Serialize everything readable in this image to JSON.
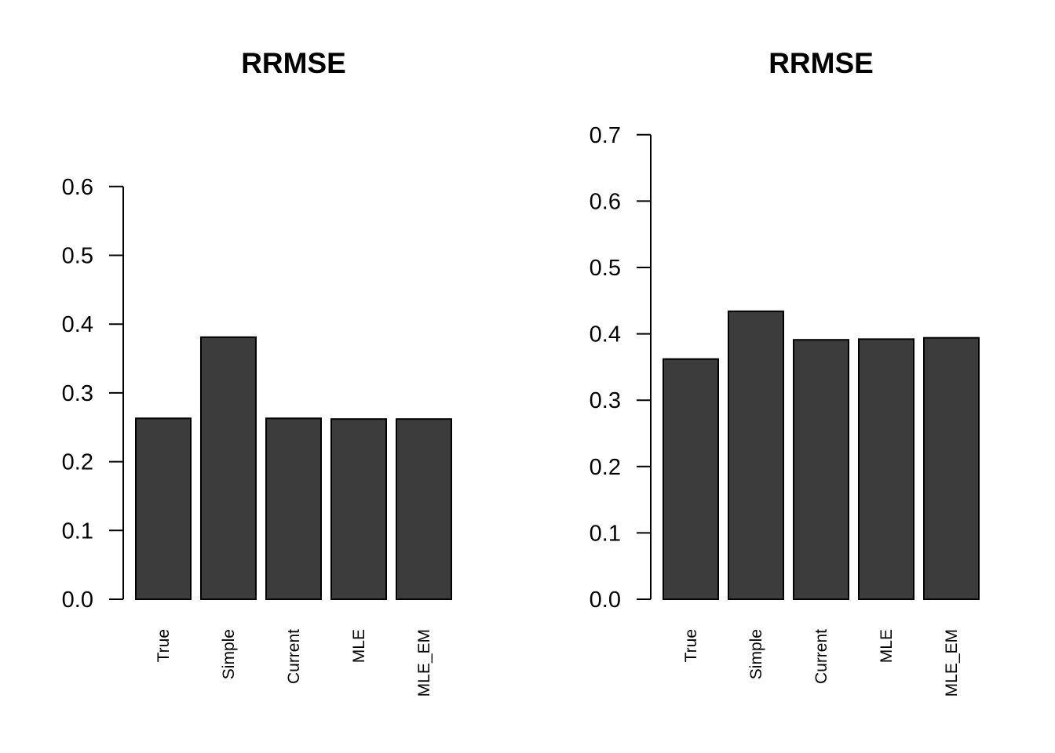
{
  "chart_data": [
    {
      "type": "bar",
      "title": "RRMSE",
      "categories": [
        "True",
        "Simple",
        "Current",
        "MLE",
        "MLE_EM"
      ],
      "values": [
        0.263,
        0.381,
        0.263,
        0.262,
        0.262
      ],
      "ylim": [
        0,
        0.6
      ],
      "yticks": [
        "0.0",
        "0.1",
        "0.2",
        "0.3",
        "0.4",
        "0.5",
        "0.6"
      ],
      "bar_color": "#3c3c3c",
      "grid": false
    },
    {
      "type": "bar",
      "title": "RRMSE",
      "categories": [
        "True",
        "Simple",
        "Current",
        "MLE",
        "MLE_EM"
      ],
      "values": [
        0.362,
        0.434,
        0.391,
        0.392,
        0.394
      ],
      "ylim": [
        0,
        0.7
      ],
      "yticks": [
        "0.0",
        "0.1",
        "0.2",
        "0.3",
        "0.4",
        "0.5",
        "0.6",
        "0.7"
      ],
      "bar_color": "#3c3c3c",
      "grid": false
    }
  ]
}
